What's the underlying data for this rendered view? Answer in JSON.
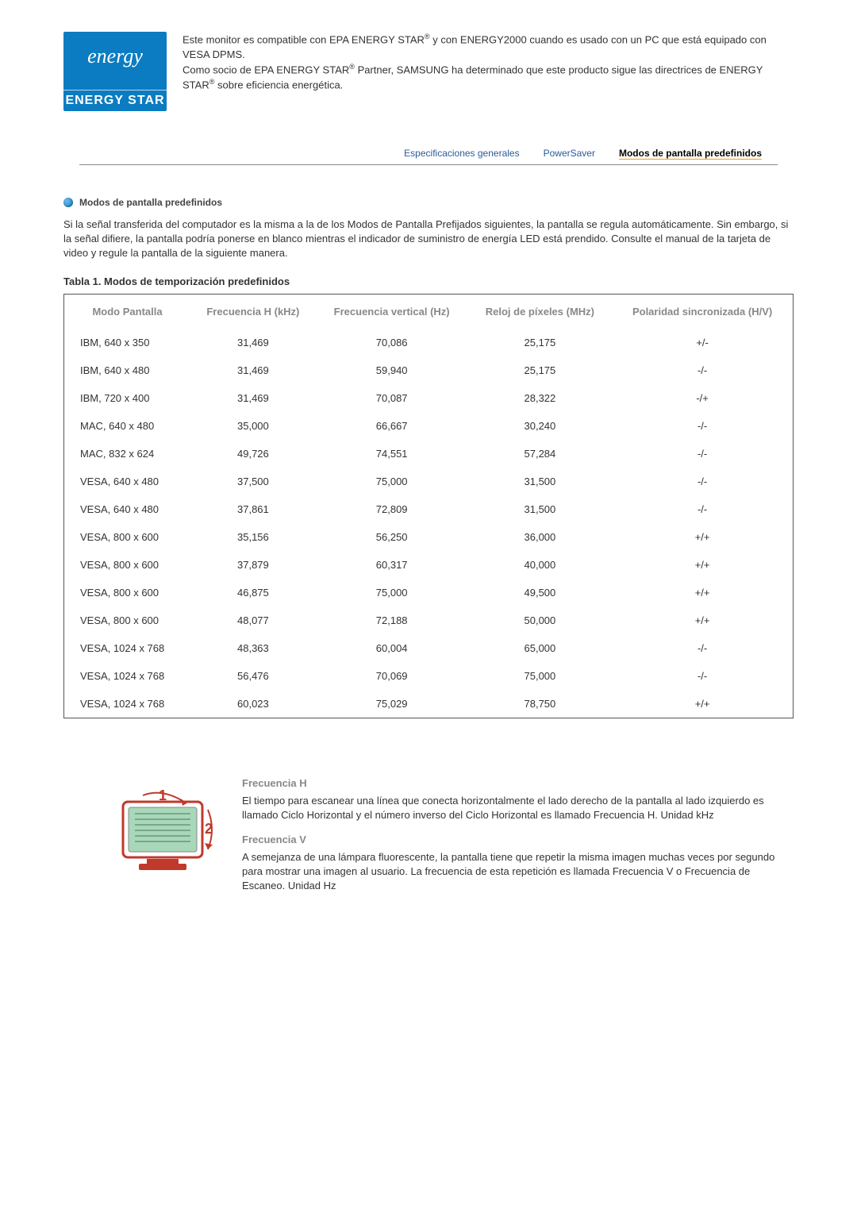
{
  "energy_logo": {
    "swirl": "energy",
    "label": "ENERGY STAR"
  },
  "top": {
    "line1a": "Este monitor es compatible con EPA ENERGY STAR",
    "line1b": " y con ENERGY2000 cuando es usado con un PC que está equipado con VESA DPMS.",
    "line2a": "Como socio de EPA ENERGY STAR",
    "line2b": " Partner, SAMSUNG ha determinado que este producto sigue las directrices de ENERGY STAR",
    "line2c": " sobre eficiencia energética.",
    "reg": "®"
  },
  "tabs": {
    "t1": "Especificaciones generales",
    "t2": "PowerSaver",
    "t3": "Modos de pantalla predefinidos"
  },
  "section_title": "Modos de pantalla predefinidos",
  "intro_para": "Si la señal transferida del computador es la misma a la de los Modos de Pantalla Prefijados siguientes, la pantalla se regula automáticamente. Sin embargo, si la señal difiere, la pantalla podría ponerse en blanco mientras el indicador de suministro de energía LED está prendido. Consulte el manual de la tarjeta de video y regule la pantalla de la siguiente manera.",
  "table_title": "Tabla 1. Modos de temporización predefinidos",
  "columns": {
    "c1": "Modo Pantalla",
    "c2": "Frecuencia H (kHz)",
    "c3": "Frecuencia vertical (Hz)",
    "c4": "Reloj de píxeles (MHz)",
    "c5": "Polaridad sincronizada (H/V)"
  },
  "rows": [
    {
      "mode": "IBM, 640 x 350",
      "hf": "31,469",
      "vf": "70,086",
      "clk": "25,175",
      "pol": "+/-"
    },
    {
      "mode": "IBM, 640 x 480",
      "hf": "31,469",
      "vf": "59,940",
      "clk": "25,175",
      "pol": "-/-"
    },
    {
      "mode": "IBM, 720 x 400",
      "hf": "31,469",
      "vf": "70,087",
      "clk": "28,322",
      "pol": "-/+"
    },
    {
      "mode": "MAC, 640 x 480",
      "hf": "35,000",
      "vf": "66,667",
      "clk": "30,240",
      "pol": "-/-"
    },
    {
      "mode": "MAC, 832 x 624",
      "hf": "49,726",
      "vf": "74,551",
      "clk": "57,284",
      "pol": "-/-"
    },
    {
      "mode": "VESA, 640 x 480",
      "hf": "37,500",
      "vf": "75,000",
      "clk": "31,500",
      "pol": "-/-"
    },
    {
      "mode": "VESA, 640 x 480",
      "hf": "37,861",
      "vf": "72,809",
      "clk": "31,500",
      "pol": "-/-"
    },
    {
      "mode": "VESA, 800 x 600",
      "hf": "35,156",
      "vf": "56,250",
      "clk": "36,000",
      "pol": "+/+"
    },
    {
      "mode": "VESA, 800 x 600",
      "hf": "37,879",
      "vf": "60,317",
      "clk": "40,000",
      "pol": "+/+"
    },
    {
      "mode": "VESA, 800 x 600",
      "hf": "46,875",
      "vf": "75,000",
      "clk": "49,500",
      "pol": "+/+"
    },
    {
      "mode": "VESA, 800 x 600",
      "hf": "48,077",
      "vf": "72,188",
      "clk": "50,000",
      "pol": "+/+"
    },
    {
      "mode": "VESA, 1024 x 768",
      "hf": "48,363",
      "vf": "60,004",
      "clk": "65,000",
      "pol": "-/-"
    },
    {
      "mode": "VESA, 1024 x 768",
      "hf": "56,476",
      "vf": "70,069",
      "clk": "75,000",
      "pol": "-/-"
    },
    {
      "mode": "VESA, 1024 x 768",
      "hf": "60,023",
      "vf": "75,029",
      "clk": "78,750",
      "pol": "+/+"
    }
  ],
  "freq_h": {
    "title": "Frecuencia H",
    "text": "El tiempo para escanear una línea que conecta horizontalmente el lado derecho de la pantalla al lado izquierdo es llamado Ciclo Horizontal y el número inverso del Ciclo Horizontal es llamado Frecuencia H. Unidad kHz"
  },
  "freq_v": {
    "title": "Frecuencia V",
    "text": "A semejanza de una lámpara fluorescente, la pantalla tiene que repetir la misma imagen muchas veces por segundo para mostrar una imagen al usuario. La frecuencia de esta repetición es llamada Frecuencia V o Frecuencia de Escaneo. Unidad Hz"
  },
  "colors": {
    "link": "#2a5a9a",
    "border": "#555555",
    "accent": "#0b7cc1"
  }
}
